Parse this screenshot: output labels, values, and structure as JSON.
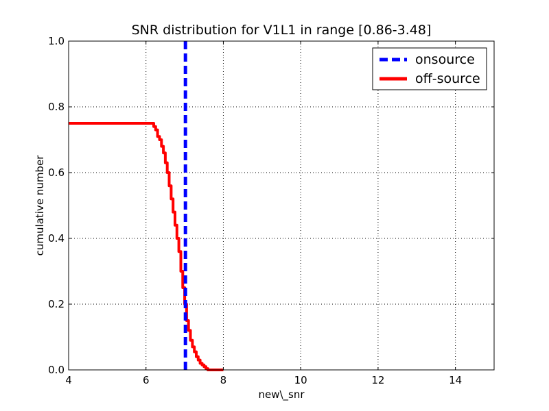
{
  "chart_data": {
    "type": "line",
    "title": "SNR distribution for V1L1 in range [0.86-3.48]",
    "xlabel": "new\\_snr",
    "ylabel": "cumulative number",
    "xlim": [
      4,
      15
    ],
    "ylim": [
      0.0,
      1.0
    ],
    "xticks": [
      4,
      6,
      8,
      10,
      12,
      14
    ],
    "xtick_labels": [
      "4",
      "6",
      "8",
      "10",
      "12",
      "14"
    ],
    "yticks": [
      0.0,
      0.2,
      0.4,
      0.6,
      0.8,
      1.0
    ],
    "ytick_labels": [
      "0.0",
      "0.2",
      "0.4",
      "0.6",
      "0.8",
      "1.0"
    ],
    "grid": true,
    "legend_position": "top-right",
    "series": [
      {
        "name": "onsource",
        "style": "dashed",
        "color": "#0000ff",
        "vertical_line_x": 7.02
      },
      {
        "name": "off-source",
        "style": "solid",
        "color": "#ff0000",
        "x": [
          4.0,
          6.0,
          6.15,
          6.2,
          6.25,
          6.3,
          6.35,
          6.4,
          6.45,
          6.5,
          6.55,
          6.6,
          6.65,
          6.7,
          6.75,
          6.8,
          6.85,
          6.9,
          6.95,
          7.0,
          7.05,
          7.1,
          7.15,
          7.2,
          7.25,
          7.3,
          7.35,
          7.4,
          7.45,
          7.5,
          7.55,
          7.6,
          7.7,
          7.8,
          8.0
        ],
        "y": [
          0.75,
          0.75,
          0.75,
          0.74,
          0.73,
          0.71,
          0.7,
          0.68,
          0.66,
          0.63,
          0.6,
          0.56,
          0.52,
          0.48,
          0.44,
          0.4,
          0.36,
          0.3,
          0.25,
          0.2,
          0.15,
          0.12,
          0.09,
          0.07,
          0.055,
          0.04,
          0.03,
          0.02,
          0.015,
          0.01,
          0.004,
          0.0,
          0.0,
          0.0,
          0.0
        ]
      }
    ]
  }
}
